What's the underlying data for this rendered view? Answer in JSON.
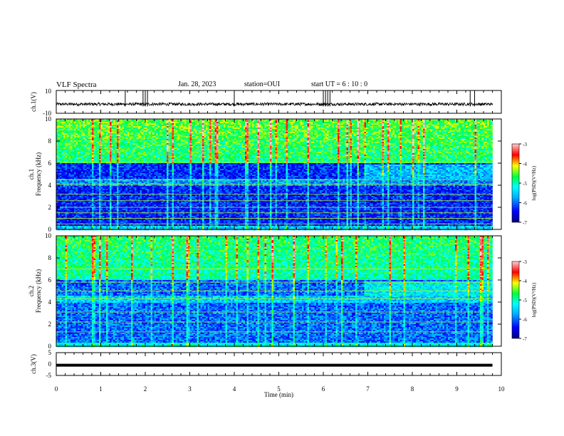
{
  "header": {
    "title": "VLF Spectra",
    "date": "Jan. 28, 2023",
    "station": "station=OUI",
    "start": "start UT =  6 : 10 : 0"
  },
  "colors": {
    "spectrogram_scale": [
      "#000080",
      "#0000ff",
      "#00c0ff",
      "#00ffff",
      "#00ff00",
      "#ffff00",
      "#ff0000",
      "#ffc0c0"
    ]
  },
  "chart_data": [
    {
      "type": "line",
      "panel": "ch1-waveform",
      "ylabel": "ch.1(V)",
      "ylim": [
        -10,
        10
      ],
      "yticks": [
        "10",
        "-10"
      ],
      "xlim": [
        0,
        10
      ],
      "x_unit": "min",
      "baseline_value": -2,
      "spikes_at_min": [
        1.55,
        1.95,
        2.0,
        2.05,
        4.0,
        6.0,
        6.05,
        6.1,
        6.15,
        9.3,
        9.4
      ]
    },
    {
      "type": "heatmap",
      "panel": "ch1-spectrogram",
      "ylabel": "ch.1 Frequency (kHz)",
      "ylim": [
        0,
        10
      ],
      "yticks": [
        "0",
        "2",
        "4",
        "6",
        "8",
        "10"
      ],
      "xlim": [
        0,
        9.8
      ],
      "colorbar": {
        "label": "log(PSD)(V²/Hz)",
        "range": [
          -7,
          -3
        ],
        "ticks": [
          "-3",
          "-4",
          "-5",
          "-6",
          "-7"
        ]
      },
      "dominant_log_psd_above_6khz": -4.5,
      "dominant_log_psd_below_6khz": -6.3,
      "horizontal_lines_khz": [
        0.5,
        1.0,
        1.5,
        2.0,
        2.6,
        3.2,
        4.1,
        4.5,
        6.1
      ],
      "regime_change_min": 6.9
    },
    {
      "type": "heatmap",
      "panel": "ch2-spectrogram",
      "ylabel": "ch.2 Frequency (kHz)",
      "ylim": [
        0,
        10
      ],
      "yticks": [
        "0",
        "2",
        "4",
        "6",
        "8",
        "10"
      ],
      "xlim": [
        0,
        9.8
      ],
      "colorbar": {
        "label": "log(PSD)(V²/Hz)",
        "range": [
          -7,
          -3
        ],
        "ticks": [
          "-3",
          "-4",
          "-5",
          "-6",
          "-7"
        ]
      },
      "dominant_log_psd_above_6khz": -4.7,
      "dominant_log_psd_below_6khz": -6.0,
      "horizontal_lines_khz": [
        1.3,
        2.2,
        3.1,
        4.3,
        5.0,
        5.8,
        7.0
      ],
      "regime_change_min": 6.9
    },
    {
      "type": "line",
      "panel": "ch3-waveform",
      "ylabel": "ch.3(V)",
      "ylim": [
        -5,
        5
      ],
      "yticks": [
        "5",
        "0",
        "-5"
      ],
      "xlim": [
        0,
        10
      ],
      "baseline_value": -0.5,
      "xlabel": "Time (min)",
      "xticks": [
        "0",
        "1",
        "2",
        "3",
        "4",
        "5",
        "6",
        "7",
        "8",
        "9",
        "10"
      ]
    }
  ]
}
